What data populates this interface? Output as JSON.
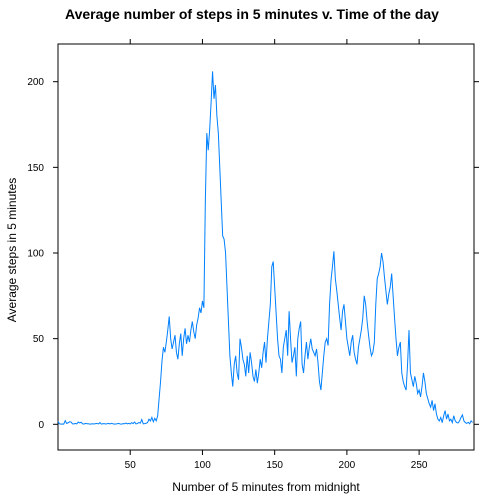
{
  "chart_data": {
    "type": "line",
    "title": "Average number of steps in 5 minutes v. Time of the day",
    "xlabel": "Number of 5 minutes from midnight",
    "ylabel": "Average steps in 5 minutes",
    "xlim": [
      0,
      288
    ],
    "ylim": [
      -15,
      222
    ],
    "xticks": [
      50,
      100,
      150,
      200,
      250
    ],
    "yticks": [
      0,
      50,
      100,
      150,
      200
    ],
    "grid": false,
    "legend": "none",
    "line_color": "#0080ff",
    "series": [
      {
        "values": [
          1.7,
          0.3,
          0.1,
          0.2,
          0.1,
          2.1,
          0.5,
          0.9,
          1.5,
          1.4,
          0.3,
          0.2,
          0.5,
          0.2,
          1.3,
          0.8,
          1.2,
          0.3,
          0.1,
          0.5,
          0.3,
          0.3,
          0.1,
          0.2,
          0.3,
          0.2,
          0.4,
          0.5,
          0.2,
          1.0,
          0.1,
          0.3,
          0.4,
          0.2,
          0.3,
          0.5,
          0.2,
          0.6,
          0.3,
          0.1,
          0.2,
          0.3,
          0.5,
          0.2,
          0.1,
          0.4,
          0.3,
          0.7,
          0.3,
          0.5,
          0.2,
          1.0,
          0.4,
          1.3,
          0.2,
          0.5,
          1.0,
          0.7,
          2.8,
          0.3,
          0.4,
          0.6,
          1.0,
          3.0,
          2.0,
          4.0,
          1.5,
          3.5,
          2.0,
          5.0,
          15.0,
          25.0,
          37.0,
          45.0,
          42.0,
          48.0,
          55.0,
          63.0,
          50.0,
          44.0,
          48.0,
          52.0,
          42.0,
          38.0,
          47.0,
          53.0,
          40.0,
          50.0,
          56.0,
          47.0,
          52.0,
          48.0,
          55.0,
          60.0,
          54.0,
          50.0,
          58.0,
          62.0,
          68.0,
          65.0,
          72.0,
          68.0,
          130.0,
          170.0,
          160.0,
          172.0,
          188.0,
          206.0,
          190.0,
          198.0,
          180.0,
          170.0,
          150.0,
          130.0,
          110.0,
          108.0,
          100.0,
          80.0,
          60.0,
          40.0,
          30.0,
          22.0,
          35.0,
          40.0,
          30.0,
          26.0,
          50.0,
          45.0,
          38.0,
          35.0,
          28.0,
          40.0,
          30.0,
          42.0,
          36.0,
          28.0,
          25.0,
          32.0,
          24.0,
          30.0,
          38.0,
          33.0,
          42.0,
          48.0,
          36.0,
          50.0,
          60.0,
          70.0,
          92.0,
          95.0,
          80.0,
          65.0,
          50.0,
          40.0,
          38.0,
          30.0,
          45.0,
          50.0,
          55.0,
          40.0,
          66.0,
          50.0,
          36.0,
          40.0,
          45.0,
          28.0,
          50.0,
          56.0,
          60.0,
          35.0,
          30.0,
          40.0,
          48.0,
          38.0,
          45.0,
          50.0,
          44.0,
          42.0,
          40.0,
          44.0,
          36.0,
          25.0,
          20.0,
          30.0,
          40.0,
          48.0,
          50.0,
          46.0,
          70.0,
          84.0,
          92.0,
          101.0,
          85.0,
          78.0,
          70.0,
          62.0,
          55.0,
          66.0,
          70.0,
          60.0,
          50.0,
          45.0,
          40.0,
          48.0,
          52.0,
          42.0,
          38.0,
          35.0,
          45.0,
          50.0,
          55.0,
          62.0,
          75.0,
          70.0,
          60.0,
          52.0,
          45.0,
          40.0,
          42.0,
          48.0,
          70.0,
          85.0,
          88.0,
          92.0,
          100.0,
          95.0,
          86.0,
          78.0,
          70.0,
          76.0,
          80.0,
          88.0,
          75.0,
          62.0,
          50.0,
          40.0,
          45.0,
          48.0,
          30.0,
          25.0,
          22.0,
          20.0,
          35.0,
          55.0,
          30.0,
          26.0,
          22.0,
          28.0,
          24.0,
          18.0,
          20.0,
          16.0,
          22.0,
          30.0,
          25.0,
          18.0,
          15.0,
          12.0,
          10.0,
          14.0,
          8.0,
          12.0,
          6.0,
          3.0,
          2.0,
          4.0,
          1.0,
          5.0,
          8.0,
          3.0,
          6.0,
          2.0,
          3.0,
          1.0,
          5.0,
          2.0,
          1.0,
          0.8,
          2.0,
          4.0,
          5.5,
          2.0,
          1.0,
          0.5,
          1.2,
          0.3,
          2.0,
          1.1
        ]
      }
    ]
  }
}
